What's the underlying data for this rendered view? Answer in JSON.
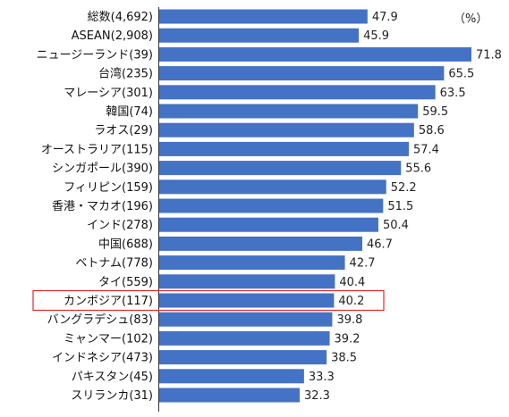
{
  "chart_data": {
    "type": "bar",
    "orientation": "horizontal",
    "unit_label": "（%）",
    "categories": [
      "総数(4,692)",
      "ASEAN(2,908)",
      "ニュージーランド(39)",
      "台湾(235)",
      "マレーシア(301)",
      "韓国(74)",
      "ラオス(29)",
      "オーストラリア(115)",
      "シンガポール(390)",
      "フィリピン(159)",
      "香港・マカオ(196)",
      "インド(278)",
      "中国(688)",
      "ベトナム(778)",
      "タイ(559)",
      "カンボジア(117)",
      "バングラデシュ(83)",
      "ミャンマー(102)",
      "インドネシア(473)",
      "パキスタン(45)",
      "スリランカ(31)"
    ],
    "values": [
      47.9,
      45.9,
      71.8,
      65.5,
      63.5,
      59.5,
      58.6,
      57.4,
      55.6,
      52.2,
      51.5,
      50.4,
      46.7,
      42.7,
      40.4,
      40.2,
      39.8,
      39.2,
      38.5,
      33.3,
      32.3
    ],
    "value_labels": [
      "47.9",
      "45.9",
      "71.8",
      "65.5",
      "63.5",
      "59.5",
      "58.6",
      "57.4",
      "55.6",
      "52.2",
      "51.5",
      "50.4",
      "46.7",
      "42.7",
      "40.4",
      "40.2",
      "39.8",
      "39.2",
      "38.5",
      "33.3",
      "32.3"
    ],
    "highlighted_category": "カンボジア(117)",
    "xlim": [
      0,
      80
    ],
    "grid": false,
    "colors": {
      "bar": "#4472C4",
      "highlight": "#E0282E",
      "axis": "#333333"
    }
  }
}
